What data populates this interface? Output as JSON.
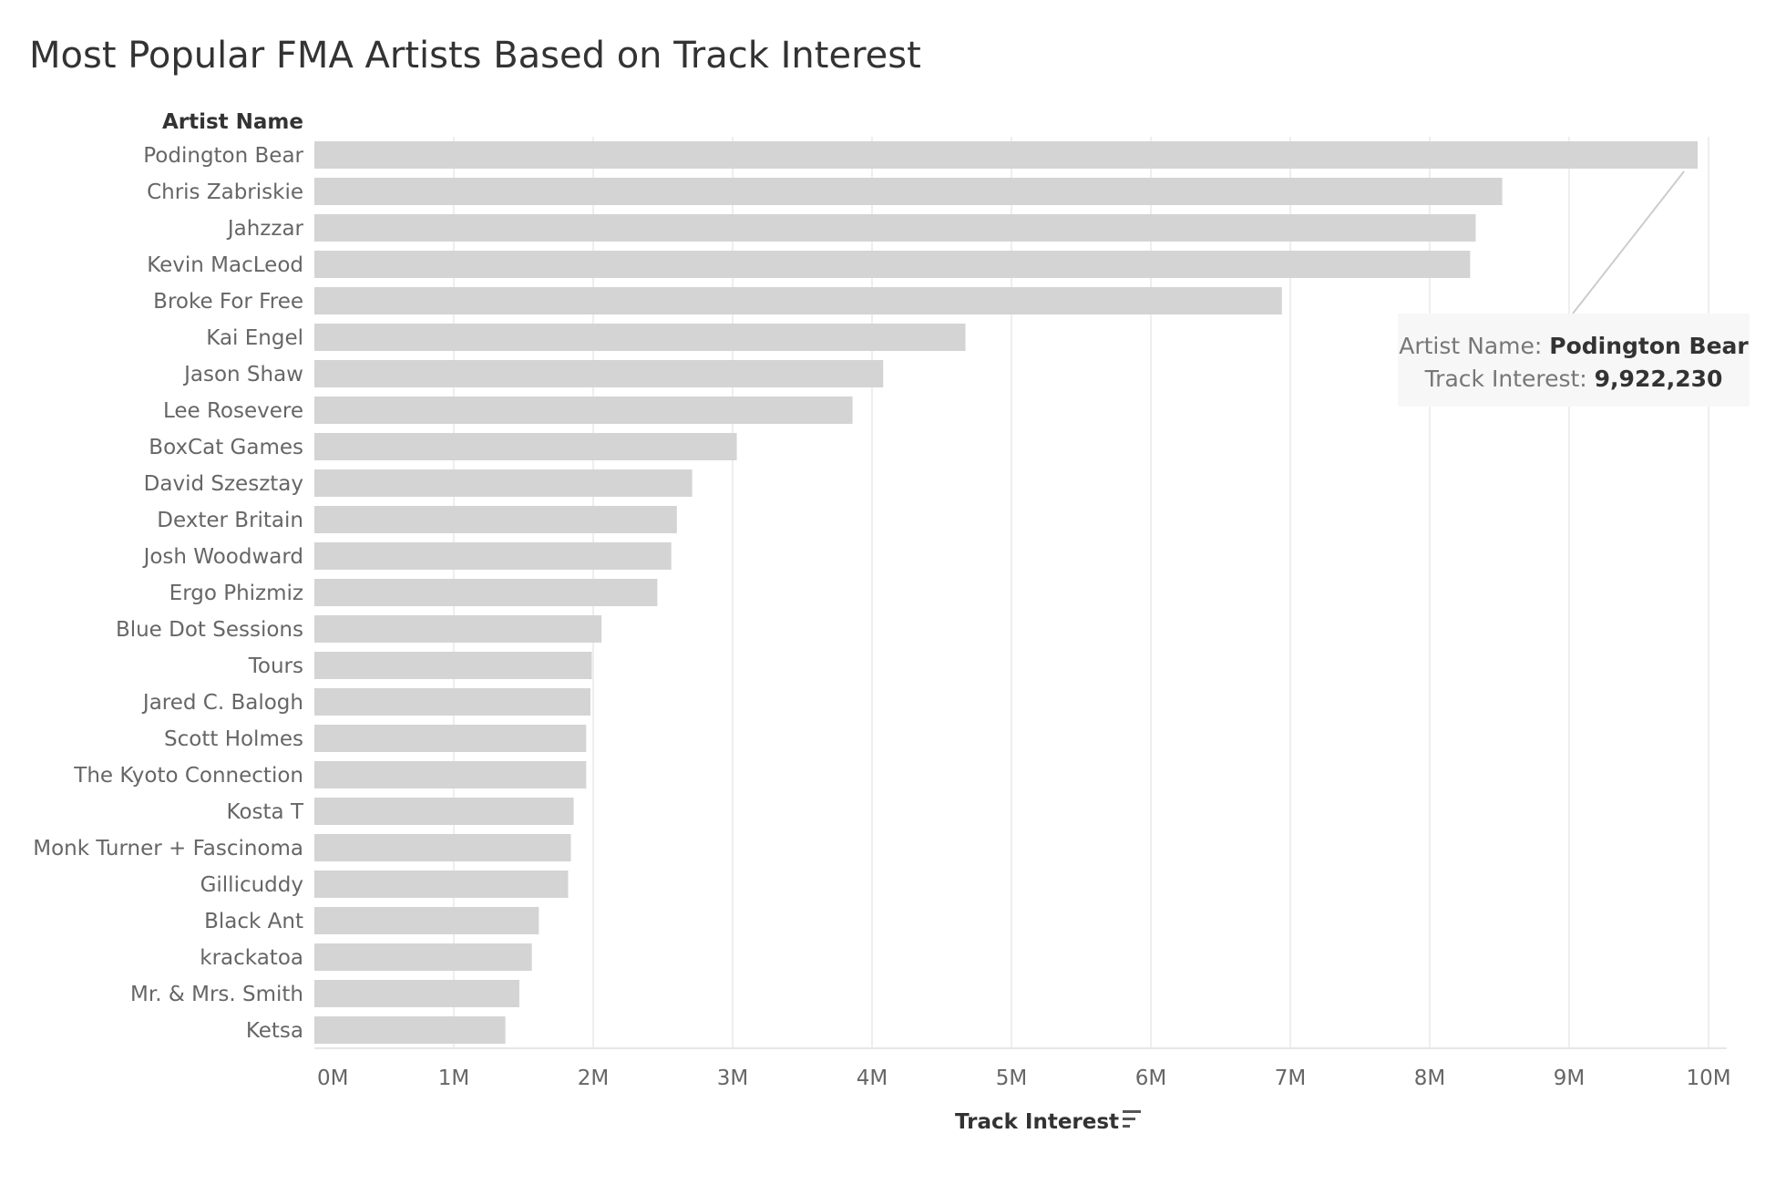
{
  "chart_data": {
    "type": "bar",
    "orientation": "horizontal",
    "title": "Most Popular FMA Artists Based on Track Interest",
    "ylabel": "Artist Name",
    "xlabel": "Track Interest",
    "xlim": [
      0,
      10500000
    ],
    "x_ticks": [
      {
        "value": 0,
        "label": "0M"
      },
      {
        "value": 1000000,
        "label": "1M"
      },
      {
        "value": 2000000,
        "label": "2M"
      },
      {
        "value": 3000000,
        "label": "3M"
      },
      {
        "value": 4000000,
        "label": "4M"
      },
      {
        "value": 5000000,
        "label": "5M"
      },
      {
        "value": 6000000,
        "label": "6M"
      },
      {
        "value": 7000000,
        "label": "7M"
      },
      {
        "value": 8000000,
        "label": "8M"
      },
      {
        "value": 9000000,
        "label": "9M"
      },
      {
        "value": 10000000,
        "label": "10M"
      }
    ],
    "categories": [
      "Podington Bear",
      "Chris Zabriskie",
      "Jahzzar",
      "Kevin MacLeod",
      "Broke For Free",
      "Kai Engel",
      "Jason Shaw",
      "Lee Rosevere",
      "BoxCat Games",
      "David Szesztay",
      "Dexter Britain",
      "Josh Woodward",
      "Ergo Phizmiz",
      "Blue Dot Sessions",
      "Tours",
      "Jared C. Balogh",
      "Scott Holmes",
      "The Kyoto Connection",
      "Kosta T",
      "Monk Turner + Fascinoma",
      "Gillicuddy",
      "Black Ant",
      "krackatoa",
      "Mr. & Mrs. Smith",
      "Ketsa"
    ],
    "values": [
      9922230,
      8520000,
      8330000,
      8290000,
      6940000,
      4670000,
      4080000,
      3860000,
      3030000,
      2710000,
      2600000,
      2560000,
      2460000,
      2060000,
      1990000,
      1980000,
      1950000,
      1950000,
      1860000,
      1840000,
      1820000,
      1610000,
      1560000,
      1470000,
      1370000
    ],
    "bar_color": "#d4d4d4",
    "grid": true,
    "sort_icon": "sort-descending-icon",
    "tooltip": {
      "artist_label": "Artist Name:",
      "artist_value": "Podington Bear",
      "interest_label": "Track Interest:",
      "interest_value": "9,922,230",
      "target_index": 0
    }
  }
}
